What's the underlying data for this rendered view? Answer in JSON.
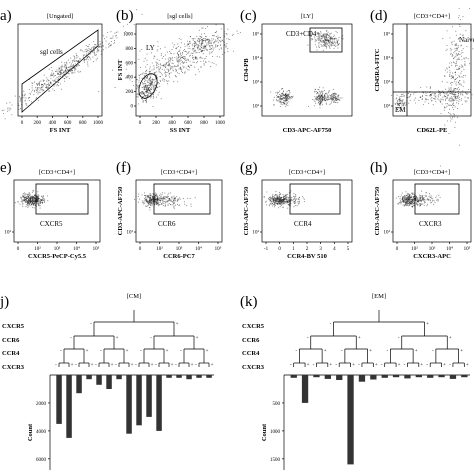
{
  "panels": [
    {
      "id": "a",
      "letter": "a)",
      "title": "[Ungated]",
      "xlabel": "FS INT",
      "ylabel": "",
      "xticks": [
        "0",
        "200",
        "400",
        "600",
        "800",
        "1000"
      ],
      "yticks": [],
      "gate_label": "sgl cells"
    },
    {
      "id": "b",
      "letter": "(b)",
      "title": "[sgl cells]",
      "xlabel": "SS INT",
      "ylabel": "FS INT",
      "xticks": [
        "0",
        "200",
        "400",
        "600",
        "800",
        "1000"
      ],
      "yticks": [
        "0",
        "200",
        "400",
        "600",
        "800",
        "1000"
      ],
      "gate_label": "LY"
    },
    {
      "id": "c",
      "letter": "(c)",
      "title": "[LY]",
      "xlabel": "CD3-APC-AF750",
      "ylabel": "CD4-PB",
      "xticks": [],
      "yticks": [
        "10²",
        "10³",
        "10⁴",
        "10⁵"
      ],
      "gate_label": "CD3+CD4+"
    },
    {
      "id": "d",
      "letter": "(d)",
      "title": "[CD3+CD4+]",
      "xlabel": "CD62L-PE",
      "ylabel": "CD45RA-FITC",
      "xticks": [],
      "yticks": [
        "10²",
        "10³",
        "10⁴",
        "10⁵"
      ],
      "gate_label": "Naive",
      "gate_label2": "EM"
    },
    {
      "id": "e",
      "letter": "e)",
      "title": "[CD3+CD4+]",
      "xlabel": "CXCR5-PeCP-Cy5.5",
      "ylabel": "",
      "xticks": [
        "0",
        "10²",
        "10³",
        "10⁴",
        "10⁵"
      ],
      "yticks": [
        "10¹"
      ],
      "gate_label": "CXCR5"
    },
    {
      "id": "f",
      "letter": "(f)",
      "title": "[CD3+CD4+]",
      "xlabel": "CCR6-PC7",
      "ylabel": "CD3-APC-AF750",
      "xticks": [
        "0",
        "10²",
        "10³",
        "10⁴",
        "10⁵"
      ],
      "yticks": [
        "10¹"
      ],
      "gate_label": "CCR6"
    },
    {
      "id": "g",
      "letter": "(g)",
      "title": "[CD3+CD4+]",
      "xlabel": "CCR4-BV 510",
      "ylabel": "CD3-APC-AF750",
      "xticks": [
        "-1",
        "0",
        "1",
        "2",
        "3",
        "4",
        "5"
      ],
      "yticks": [
        "10¹"
      ],
      "gate_label": "CCR4"
    },
    {
      "id": "h",
      "letter": "(h)",
      "title": "[CD3+CD4+]",
      "xlabel": "CXCR3-APC",
      "ylabel": "CD3-APC-AF750",
      "xticks": [
        "0",
        "10²",
        "10³",
        "10⁴",
        "10⁵"
      ],
      "yticks": [
        "10¹"
      ],
      "gate_label": "CXCR3"
    }
  ],
  "chart_data": [
    {
      "type": "bar",
      "letter": "j)",
      "title": "[CM]",
      "row_labels": [
        "CXCR5",
        "CCR6",
        "CCR4",
        "CXCR3"
      ],
      "signs": {
        "CXCR5": [
          "-",
          "+"
        ],
        "CCR6": [
          "-",
          "+",
          "-",
          "+"
        ],
        "CCR4": [
          "-",
          "+",
          "-",
          "+",
          "-",
          "+",
          "-",
          "+"
        ],
        "CXCR3": [
          "-",
          "+",
          "-",
          "+",
          "-",
          "+",
          "-",
          "+",
          "-",
          "+",
          "-",
          "+",
          "-",
          "+",
          "-",
          "+"
        ]
      },
      "ylabel": "Count",
      "yticks": [
        "2000",
        "4000",
        "6000"
      ],
      "ylim": [
        0,
        6800
      ],
      "values": [
        3500,
        4500,
        1300,
        300,
        700,
        1000,
        300,
        4200,
        3600,
        3000,
        4000,
        200,
        200,
        300,
        200,
        200
      ]
    },
    {
      "type": "bar",
      "letter": "(k)",
      "title": "[EM]",
      "row_labels": [
        "CXCR5",
        "CCR6",
        "CCR4",
        "CXCR3"
      ],
      "signs": {
        "CXCR5": [
          "-",
          "+"
        ],
        "CCR6": [
          "-",
          "+",
          "-",
          "+"
        ],
        "CCR4": [
          "-",
          "+",
          "-",
          "+",
          "-",
          "+",
          "-",
          "+"
        ],
        "CXCR3": [
          "-",
          "+",
          "-",
          "+",
          "-",
          "+",
          "-",
          "+",
          "-",
          "+",
          "-",
          "+",
          "-",
          "+",
          "-",
          "+"
        ]
      },
      "ylabel": "Count",
      "yticks": [
        "500",
        "1000",
        "1500"
      ],
      "ylim": [
        0,
        1700
      ],
      "values": [
        50,
        500,
        40,
        70,
        90,
        1600,
        120,
        80,
        50,
        40,
        60,
        40,
        50,
        40,
        70,
        40
      ]
    }
  ]
}
